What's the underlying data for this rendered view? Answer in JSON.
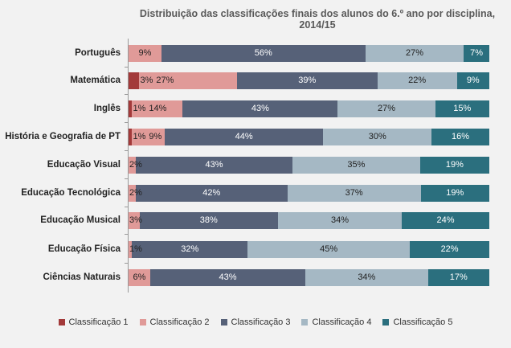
{
  "chart_data": {
    "type": "bar",
    "orientation": "horizontal",
    "stacked": true,
    "title": "Distribuição das classificações finais dos alunos do 6.º ano por disciplina, 2014/15",
    "xlabel": "",
    "ylabel": "",
    "categories": [
      "Português",
      "Matemática",
      "Inglês",
      "História e Geografia de PT",
      "Educação Visual",
      "Educação Tecnológica",
      "Educação Musical",
      "Educação Física",
      "Ciências Naturais"
    ],
    "series": [
      {
        "name": "Classificação 1",
        "color": "#a33a3a",
        "text": "#222",
        "values": [
          0,
          3,
          1,
          1,
          0,
          0,
          0,
          0,
          0
        ]
      },
      {
        "name": "Classificação 2",
        "color": "#e09a98",
        "text": "#222",
        "values": [
          9,
          27,
          14,
          9,
          2,
          2,
          3,
          1,
          6
        ]
      },
      {
        "name": "Classificação 3",
        "color": "#566178",
        "text": "#fff",
        "values": [
          56,
          39,
          43,
          44,
          43,
          42,
          38,
          32,
          43
        ]
      },
      {
        "name": "Classificação 4",
        "color": "#a5b8c4",
        "text": "#222",
        "values": [
          27,
          22,
          27,
          30,
          35,
          37,
          34,
          45,
          34
        ]
      },
      {
        "name": "Classificação 5",
        "color": "#2b6f7e",
        "text": "#fff",
        "values": [
          7,
          9,
          15,
          16,
          19,
          19,
          24,
          22,
          17
        ]
      }
    ],
    "value_unit": "%",
    "xlim": [
      0,
      100
    ],
    "legend_position": "bottom",
    "grid": false
  }
}
